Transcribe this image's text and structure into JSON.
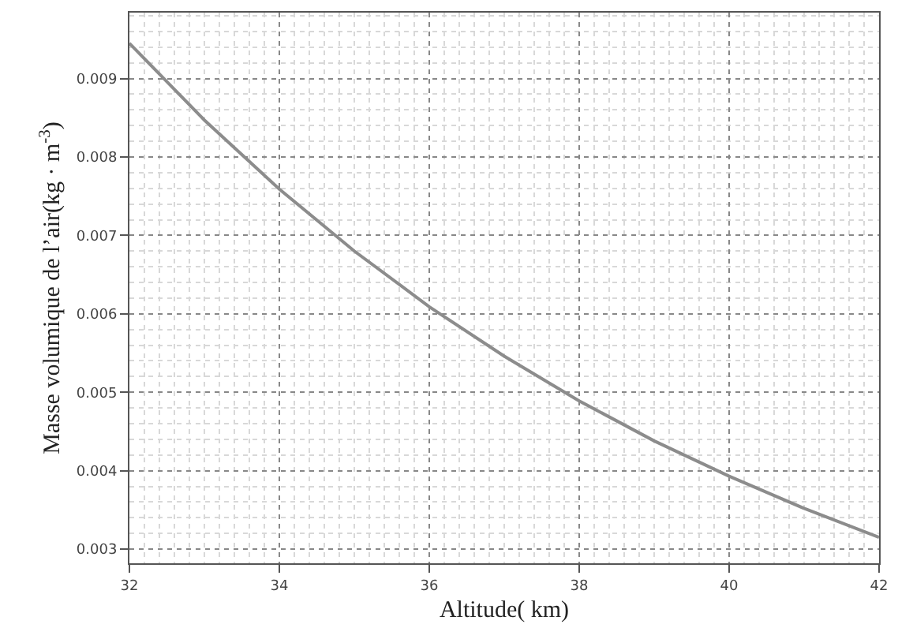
{
  "chart_data": {
    "type": "line",
    "xlabel": "Altitude( km)",
    "ylabel": "Masse volumique de l’air(kg · m$^{-3}$)",
    "x": [
      32,
      33,
      34,
      35,
      36,
      37,
      38,
      39,
      40,
      41,
      42
    ],
    "series": [
      {
        "color": "#8c8c8c",
        "values": [
          0.00945,
          0.00847,
          0.00759,
          0.0068,
          0.00609,
          0.00546,
          0.00489,
          0.00438,
          0.00393,
          0.00352,
          0.00315
        ]
      }
    ],
    "xlim": [
      32,
      42
    ],
    "ylim": [
      0.00282,
      0.00984
    ],
    "xticks": [
      32,
      34,
      36,
      38,
      40,
      42
    ],
    "yticks": [
      0.003,
      0.004,
      0.005,
      0.006,
      0.007,
      0.008,
      0.009
    ],
    "grid": true,
    "legend": false,
    "marker": "none",
    "line_style": "solid"
  }
}
